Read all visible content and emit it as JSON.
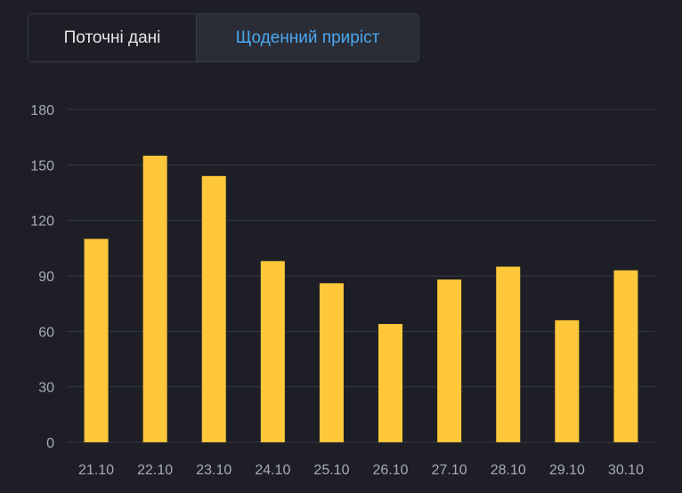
{
  "toggle": {
    "current_label": "Поточні дані",
    "daily_label": "Щоденний приріст",
    "active": "daily"
  },
  "colors": {
    "background": "#1e1f26",
    "bar": "#ffc83a",
    "grid": "#353741",
    "axis_text": "#a9abb4",
    "active_tab_text": "#4aa8f0"
  },
  "chart_data": {
    "type": "bar",
    "categories": [
      "21.10",
      "22.10",
      "23.10",
      "24.10",
      "25.10",
      "26.10",
      "27.10",
      "28.10",
      "29.10",
      "30.10"
    ],
    "values": [
      110,
      155,
      144,
      98,
      86,
      64,
      88,
      95,
      66,
      93
    ],
    "yticks": [
      0,
      30,
      60,
      90,
      120,
      150,
      180
    ],
    "ylim": [
      0,
      180
    ],
    "grid": true,
    "legend": "none"
  }
}
